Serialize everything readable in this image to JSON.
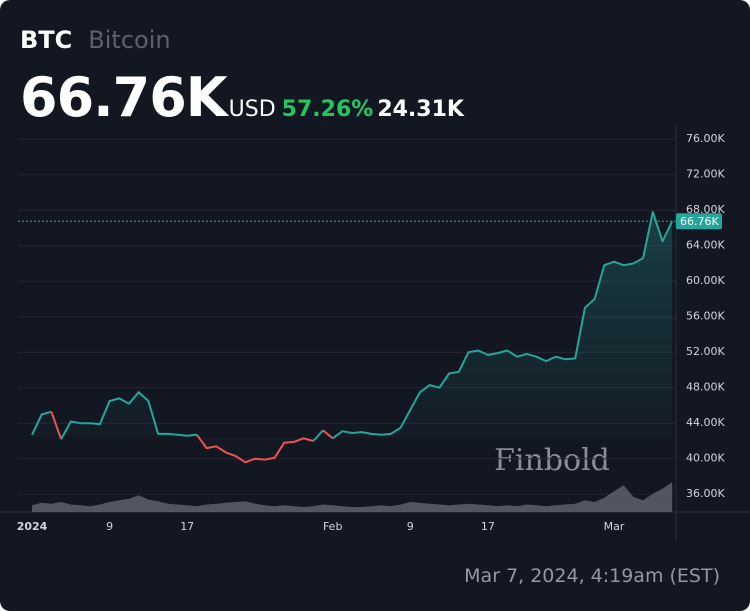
{
  "chart_data": {
    "type": "line",
    "title": "BTC",
    "subtitle": "Bitcoin",
    "price": 66760,
    "price_label": "66.76K",
    "currency": "USD",
    "change_pct": 57.26,
    "change_pct_label": "57.26%",
    "change": 24310,
    "change_label": "24.31K",
    "timestamp": "Mar 7, 2024, 4:19am (EST)",
    "watermark": "Finbold",
    "categories": [
      "2024",
      null,
      null,
      null,
      null,
      null,
      null,
      null,
      "9",
      null,
      null,
      null,
      null,
      null,
      null,
      null,
      "17",
      null,
      null,
      null,
      null,
      null,
      null,
      null,
      null,
      null,
      null,
      null,
      null,
      null,
      null,
      "Feb",
      null,
      null,
      null,
      null,
      null,
      null,
      null,
      "9",
      null,
      null,
      null,
      null,
      null,
      null,
      null,
      "17",
      null,
      null,
      null,
      null,
      null,
      null,
      null,
      null,
      null,
      null,
      null,
      null,
      "Mar",
      null,
      null,
      null,
      null,
      null,
      null
    ],
    "series": [
      {
        "name": "BTC",
        "color": "#26a69a",
        "down_color": "#ef5350",
        "values": [
          42700,
          45000,
          45300,
          42200,
          44200,
          44000,
          44000,
          43900,
          46500,
          46800,
          46200,
          47500,
          46500,
          42800,
          42800,
          42700,
          42600,
          42700,
          41200,
          41400,
          40700,
          40300,
          39600,
          40000,
          39900,
          40100,
          41800,
          41900,
          42300,
          42000,
          43200,
          42300,
          43100,
          42900,
          43000,
          42800,
          42700,
          42800,
          43500,
          45500,
          47500,
          48300,
          48000,
          49600,
          49800,
          52000,
          52200,
          51700,
          51900,
          52200,
          51500,
          51800,
          51500,
          51000,
          51500,
          51200,
          51300,
          57000,
          58000,
          61800,
          62200,
          61800,
          62000,
          62600,
          67800,
          64500,
          66760
        ]
      },
      {
        "name": "Volume",
        "color": "#5d606b",
        "values": [
          8,
          11,
          10,
          12,
          9,
          8,
          7,
          9,
          12,
          14,
          16,
          20,
          15,
          13,
          10,
          9,
          8,
          7,
          9,
          10,
          11,
          12,
          13,
          10,
          8,
          7,
          8,
          7,
          6,
          7,
          9,
          8,
          7,
          6,
          6,
          7,
          8,
          7,
          9,
          12,
          11,
          10,
          9,
          8,
          9,
          10,
          9,
          8,
          7,
          8,
          7,
          9,
          8,
          7,
          8,
          9,
          10,
          14,
          12,
          17,
          25,
          32,
          18,
          14,
          22,
          28,
          36
        ]
      }
    ],
    "ylim": [
      34000,
      77600
    ],
    "yticks": [
      {
        "value": 36000,
        "label": "36.00K"
      },
      {
        "value": 40000,
        "label": "40.00K"
      },
      {
        "value": 44000,
        "label": "44.00K"
      },
      {
        "value": 48000,
        "label": "48.00K"
      },
      {
        "value": 52000,
        "label": "52.00K"
      },
      {
        "value": 56000,
        "label": "56.00K"
      },
      {
        "value": 60000,
        "label": "60.00K"
      },
      {
        "value": 64000,
        "label": "64.00K"
      },
      {
        "value": 68000,
        "label": "68.00K"
      },
      {
        "value": 72000,
        "label": "72.00K"
      },
      {
        "value": 76000,
        "label": "76.00K"
      }
    ],
    "grid": true
  }
}
